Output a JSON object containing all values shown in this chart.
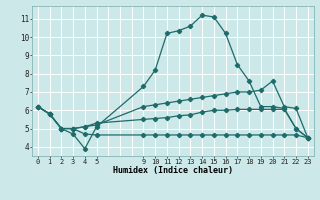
{
  "xlabel": "Humidex (Indice chaleur)",
  "bg_color": "#cce8e8",
  "grid_color": "#ffffff",
  "grid_minor_color": "#e0f4f4",
  "line_color": "#1e6b6b",
  "x_ticks": [
    0,
    1,
    2,
    3,
    4,
    5,
    9,
    10,
    11,
    12,
    13,
    14,
    15,
    16,
    17,
    18,
    19,
    20,
    21,
    22,
    23
  ],
  "series1_x": [
    0,
    1,
    2,
    3,
    4,
    5,
    9,
    10,
    11,
    12,
    13,
    14,
    15,
    16,
    17,
    18,
    19,
    20,
    21,
    22,
    23
  ],
  "series1_y": [
    6.2,
    5.8,
    5.0,
    4.7,
    3.9,
    5.1,
    7.3,
    8.2,
    10.2,
    10.35,
    10.6,
    11.2,
    11.1,
    10.2,
    8.5,
    7.6,
    6.2,
    6.2,
    6.1,
    5.0,
    4.5
  ],
  "series2_x": [
    0,
    1,
    2,
    3,
    4,
    5,
    9,
    10,
    11,
    12,
    13,
    14,
    15,
    16,
    17,
    18,
    19,
    20,
    21,
    22,
    23
  ],
  "series2_y": [
    6.2,
    5.8,
    5.0,
    5.0,
    5.1,
    5.2,
    6.2,
    6.3,
    6.4,
    6.5,
    6.6,
    6.7,
    6.8,
    6.9,
    7.0,
    7.0,
    7.1,
    7.6,
    6.2,
    6.1,
    4.5
  ],
  "series3_x": [
    0,
    1,
    2,
    3,
    4,
    5,
    9,
    10,
    11,
    12,
    13,
    14,
    15,
    16,
    17,
    18,
    19,
    20,
    21,
    22,
    23
  ],
  "series3_y": [
    6.2,
    5.8,
    5.0,
    5.0,
    5.1,
    5.3,
    5.5,
    5.55,
    5.6,
    5.7,
    5.75,
    5.9,
    6.0,
    6.0,
    6.05,
    6.05,
    6.05,
    6.05,
    6.05,
    5.0,
    4.5
  ],
  "series4_x": [
    0,
    1,
    2,
    3,
    4,
    5,
    9,
    10,
    11,
    12,
    13,
    14,
    15,
    16,
    17,
    18,
    19,
    20,
    21,
    22,
    23
  ],
  "series4_y": [
    6.2,
    5.8,
    5.0,
    5.0,
    4.7,
    4.65,
    4.65,
    4.65,
    4.65,
    4.65,
    4.65,
    4.65,
    4.65,
    4.65,
    4.65,
    4.65,
    4.65,
    4.65,
    4.65,
    4.65,
    4.5
  ],
  "ylim": [
    3.5,
    11.7
  ],
  "yticks": [
    4,
    5,
    6,
    7,
    8,
    9,
    10,
    11
  ],
  "xlim": [
    -0.5,
    23.5
  ]
}
